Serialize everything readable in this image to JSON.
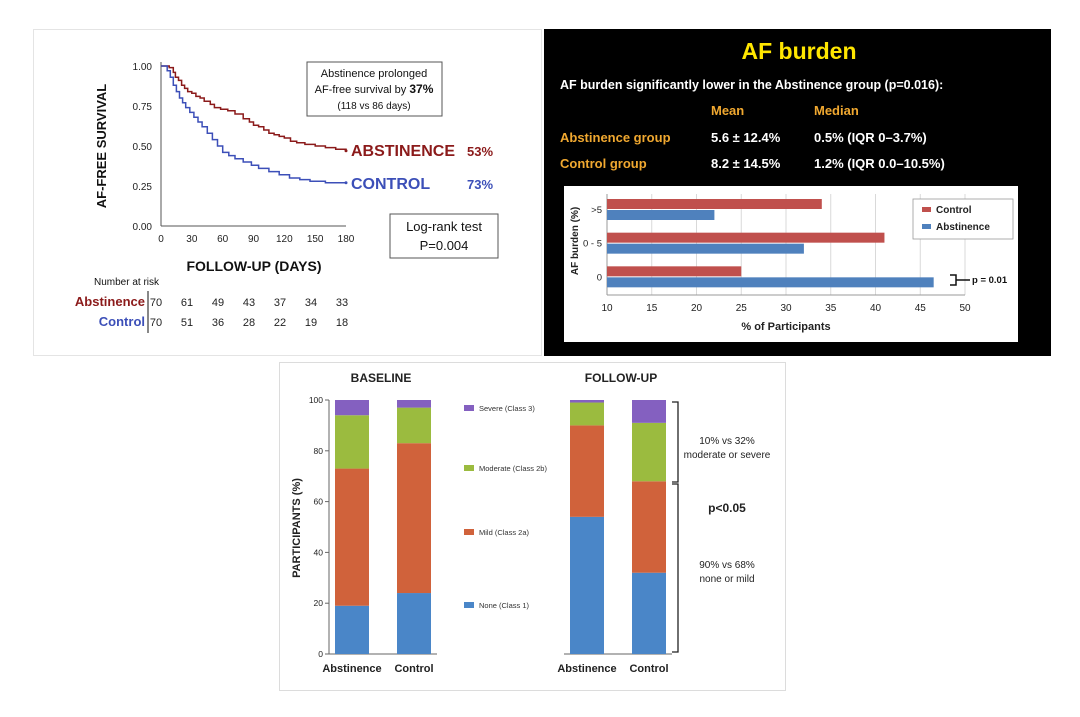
{
  "chart_data": [
    {
      "type": "line",
      "ylabel": "AF-FREE SURVIVAL",
      "xlabel": "FOLLOW-UP (DAYS)",
      "x_ticks": [
        "0",
        "30",
        "60",
        "90",
        "120",
        "150",
        "180"
      ],
      "y_ticks": [
        "1.00",
        "0.75",
        "0.50",
        "0.25",
        "0.00"
      ],
      "xlim": [
        0,
        180
      ],
      "ylim": [
        0,
        1
      ],
      "series": [
        {
          "name": "ABSTINENCE",
          "end_label": "53%",
          "color": "#8b1a1a",
          "x": [
            0,
            8,
            12,
            14,
            17,
            20,
            23,
            26,
            30,
            34,
            38,
            42,
            48,
            52,
            58,
            65,
            72,
            80,
            86,
            90,
            95,
            100,
            105,
            110,
            115,
            120,
            126,
            132,
            140,
            150,
            160,
            170,
            180
          ],
          "y": [
            1.0,
            0.99,
            0.96,
            0.93,
            0.91,
            0.88,
            0.86,
            0.84,
            0.83,
            0.81,
            0.8,
            0.78,
            0.76,
            0.74,
            0.73,
            0.72,
            0.7,
            0.67,
            0.65,
            0.63,
            0.62,
            0.6,
            0.58,
            0.57,
            0.56,
            0.55,
            0.53,
            0.52,
            0.51,
            0.5,
            0.49,
            0.48,
            0.47
          ]
        },
        {
          "name": "CONTROL",
          "end_label": "73%",
          "color": "#3c4fb8",
          "x": [
            0,
            6,
            9,
            12,
            15,
            18,
            21,
            24,
            28,
            32,
            36,
            40,
            45,
            50,
            55,
            60,
            66,
            72,
            80,
            88,
            95,
            105,
            115,
            125,
            135,
            145,
            160,
            170,
            180
          ],
          "y": [
            1.0,
            0.97,
            0.93,
            0.88,
            0.84,
            0.8,
            0.77,
            0.74,
            0.71,
            0.68,
            0.65,
            0.62,
            0.58,
            0.54,
            0.5,
            0.46,
            0.44,
            0.42,
            0.4,
            0.38,
            0.36,
            0.34,
            0.32,
            0.3,
            0.29,
            0.28,
            0.27,
            0.27,
            0.27
          ]
        }
      ],
      "annotation": {
        "line1": "Abstinence prolonged",
        "line2_prefix": "AF-free survival by ",
        "line2_bold": "37%",
        "line3": "(118 vs 86 days)"
      },
      "test_box": {
        "line1": "Log-rank test",
        "line2": "P=0.004"
      },
      "risk_table": {
        "title": "Number at risk",
        "rows": [
          {
            "name": "Abstinence",
            "values": [
              "70",
              "61",
              "49",
              "43",
              "37",
              "34",
              "33"
            ]
          },
          {
            "name": "Control",
            "values": [
              "70",
              "51",
              "36",
              "28",
              "22",
              "19",
              "18"
            ]
          }
        ]
      }
    },
    {
      "type": "bar",
      "title": "AF burden",
      "subtitle": "AF burden significantly lower in the Abstinence group (p=0.016):",
      "stats_table": {
        "headers": [
          "Mean",
          "Median"
        ],
        "rows": [
          {
            "label": "Abstinence group",
            "mean": "5.6 ± 12.4%",
            "median": "0.5% (IQR 0–3.7%)"
          },
          {
            "label": "Control group",
            "mean": "8.2 ± 14.5%",
            "median": "1.2% (IQR 0.0–10.5%)"
          }
        ]
      },
      "orientation": "horizontal",
      "categories": [
        ">5",
        "0 - 5",
        "0"
      ],
      "ylabel": "AF burden (%)",
      "xlabel": "% of Participants",
      "xlim": [
        10,
        50
      ],
      "x_ticks": [
        "10",
        "15",
        "20",
        "25",
        "30",
        "35",
        "40",
        "45",
        "50"
      ],
      "series": [
        {
          "name": "Control",
          "color": "#c0504d",
          "values": [
            34,
            41,
            25
          ]
        },
        {
          "name": "Abstinence",
          "color": "#4f81bd",
          "values": [
            22,
            32,
            46.5
          ]
        }
      ],
      "legend": "top-right",
      "annotation": "p = 0.01"
    },
    {
      "type": "bar",
      "stacked": true,
      "panels": [
        {
          "title": "BASELINE",
          "categories": [
            "Abstinence",
            "Control"
          ],
          "series": [
            {
              "name": "None (Class 1)",
              "values": [
                19,
                24
              ]
            },
            {
              "name": "Mild (Class 2a)",
              "values": [
                54,
                59
              ]
            },
            {
              "name": "Moderate (Class 2b)",
              "values": [
                21,
                14
              ]
            },
            {
              "name": "Severe (Class 3)",
              "values": [
                6,
                3
              ]
            }
          ]
        },
        {
          "title": "FOLLOW-UP",
          "categories": [
            "Abstinence",
            "Control"
          ],
          "series": [
            {
              "name": "None (Class 1)",
              "values": [
                54,
                32
              ]
            },
            {
              "name": "Mild (Class 2a)",
              "values": [
                36,
                36
              ]
            },
            {
              "name": "Moderate (Class 2b)",
              "values": [
                9,
                23
              ]
            },
            {
              "name": "Severe (Class 3)",
              "values": [
                1,
                9
              ]
            }
          ]
        }
      ],
      "colors": [
        "#4a86c8",
        "#d0623b",
        "#9bbb3f",
        "#8460c0"
      ],
      "ylabel": "PARTICIPANTS (%)",
      "ylim": [
        0,
        100
      ],
      "y_ticks": [
        "0",
        "20",
        "40",
        "60",
        "80",
        "100"
      ],
      "annotations": {
        "top_line1": "10% vs 32%",
        "top_line2": "moderate or severe",
        "pvalue": "p<0.05",
        "bottom_line1": "90% vs 68%",
        "bottom_line2": "none or mild"
      }
    }
  ]
}
